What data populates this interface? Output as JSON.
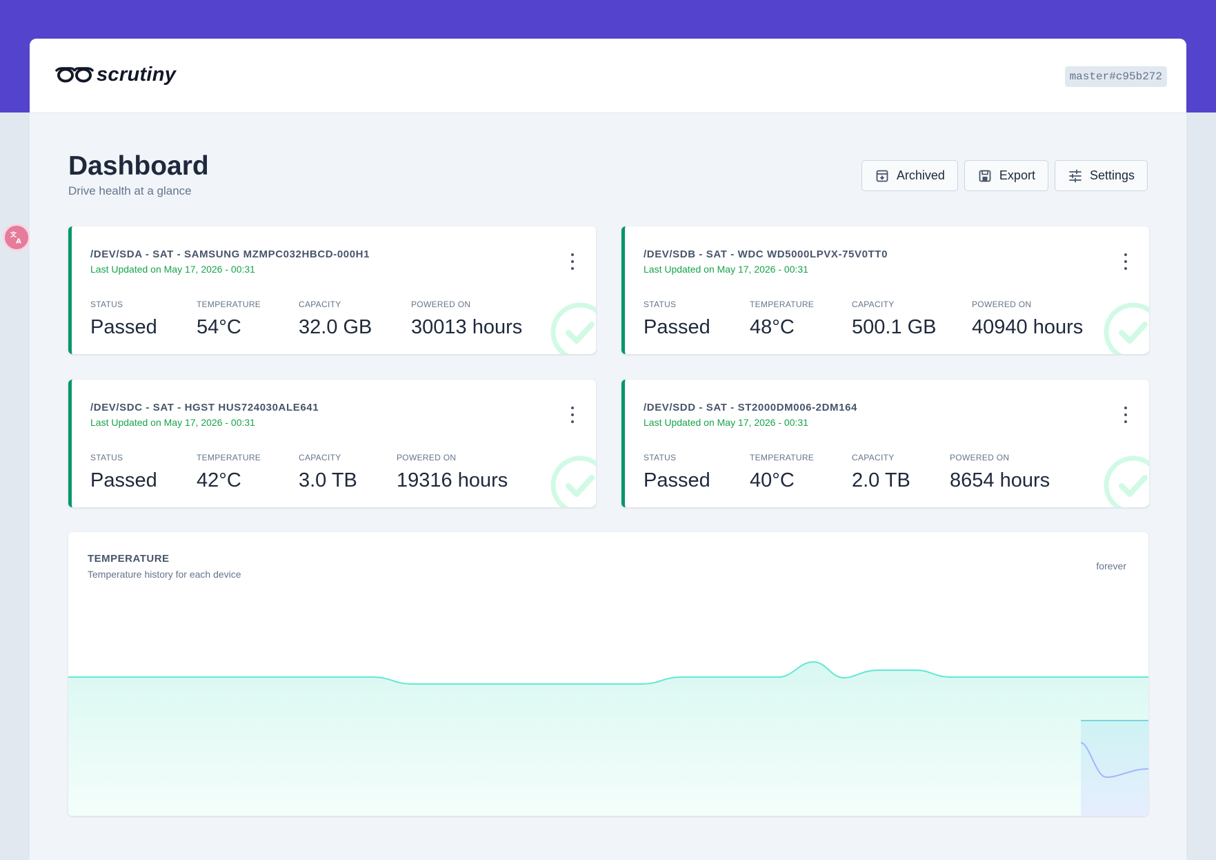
{
  "app": {
    "name": "scrutiny",
    "version": "master#c95b272"
  },
  "page": {
    "title": "Dashboard",
    "subtitle": "Drive health at a glance"
  },
  "toolbar": {
    "archived_label": "Archived",
    "export_label": "Export",
    "settings_label": "Settings"
  },
  "stat_labels": {
    "status": "STATUS",
    "temperature": "TEMPERATURE",
    "capacity": "CAPACITY",
    "powered_on": "POWERED ON"
  },
  "devices": [
    {
      "title": "/DEV/SDA - SAT - SAMSUNG MZMPC032HBCD-000H1",
      "updated": "Last Updated on May 17, 2026 - 00:31",
      "status": "Passed",
      "temperature": "54°C",
      "capacity": "32.0 GB",
      "powered_on": "30013 hours"
    },
    {
      "title": "/DEV/SDB - SAT - WDC WD5000LPVX-75V0TT0",
      "updated": "Last Updated on May 17, 2026 - 00:31",
      "status": "Passed",
      "temperature": "48°C",
      "capacity": "500.1 GB",
      "powered_on": "40940 hours"
    },
    {
      "title": "/DEV/SDC - SAT - HGST HUS724030ALE641",
      "updated": "Last Updated on May 17, 2026 - 00:31",
      "status": "Passed",
      "temperature": "42°C",
      "capacity": "3.0 TB",
      "powered_on": "19316 hours"
    },
    {
      "title": "/DEV/SDD - SAT - ST2000DM006-2DM164",
      "updated": "Last Updated on May 17, 2026 - 00:31",
      "status": "Passed",
      "temperature": "40°C",
      "capacity": "2.0 TB",
      "powered_on": "8654 hours"
    }
  ],
  "temperature_chart": {
    "title": "TEMPERATURE",
    "subtitle": "Temperature history for each device",
    "range_label": "forever"
  },
  "colors": {
    "brand_band": "#5443cc",
    "status_passed": "#059669",
    "chart_series_1": "#5eead4",
    "chart_series_2": "#a5b4fc"
  }
}
